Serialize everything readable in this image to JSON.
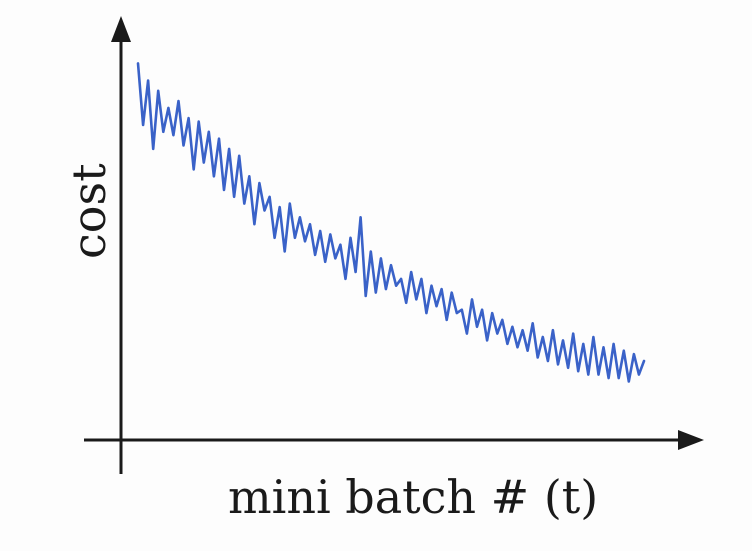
{
  "chart_data": {
    "type": "line",
    "title": "",
    "xlabel": "mini batch # (t)",
    "ylabel": "cost",
    "xlim": [
      0,
      100
    ],
    "ylim": [
      0,
      100
    ],
    "grid": false,
    "legend": "none",
    "series": [
      {
        "color": "#3a62c8",
        "x": [
          0,
          1,
          2,
          3,
          4,
          5,
          6,
          7,
          8,
          9,
          10,
          11,
          12,
          13,
          14,
          15,
          16,
          17,
          18,
          19,
          20,
          21,
          22,
          23,
          24,
          25,
          26,
          27,
          28,
          29,
          30,
          31,
          32,
          33,
          34,
          35,
          36,
          37,
          38,
          39,
          40,
          41,
          42,
          43,
          44,
          45,
          46,
          47,
          48,
          49,
          50,
          51,
          52,
          53,
          54,
          55,
          56,
          57,
          58,
          59,
          60,
          61,
          62,
          63,
          64,
          65,
          66,
          67,
          68,
          69,
          70,
          71,
          72,
          73,
          74,
          75,
          76,
          77,
          78,
          79,
          80,
          81,
          82,
          83,
          84,
          85,
          86,
          87,
          88,
          89,
          90,
          91,
          92,
          93,
          94,
          95,
          96,
          97,
          98,
          99,
          100
        ],
        "y": [
          99,
          81,
          94,
          74,
          91,
          79,
          86,
          78,
          88,
          75,
          83,
          68,
          82,
          70,
          79,
          66,
          77,
          62,
          74,
          60,
          72,
          58,
          66,
          52,
          64,
          56,
          60,
          48,
          57,
          44,
          58,
          48,
          54,
          47,
          52,
          43,
          50,
          41,
          49,
          42,
          46,
          36,
          48,
          38,
          54,
          31,
          44,
          32,
          42,
          33,
          40,
          34,
          36,
          29,
          38,
          30,
          36,
          26,
          34,
          28,
          33,
          24,
          32,
          26,
          27,
          20,
          30,
          22,
          27,
          18,
          26,
          20,
          24,
          17,
          22,
          16,
          21,
          15,
          23,
          13,
          19,
          12,
          21,
          11,
          18,
          10,
          20,
          9,
          17,
          8,
          19,
          8,
          16,
          7,
          17,
          7,
          15,
          6,
          14,
          8,
          12
        ]
      }
    ]
  }
}
